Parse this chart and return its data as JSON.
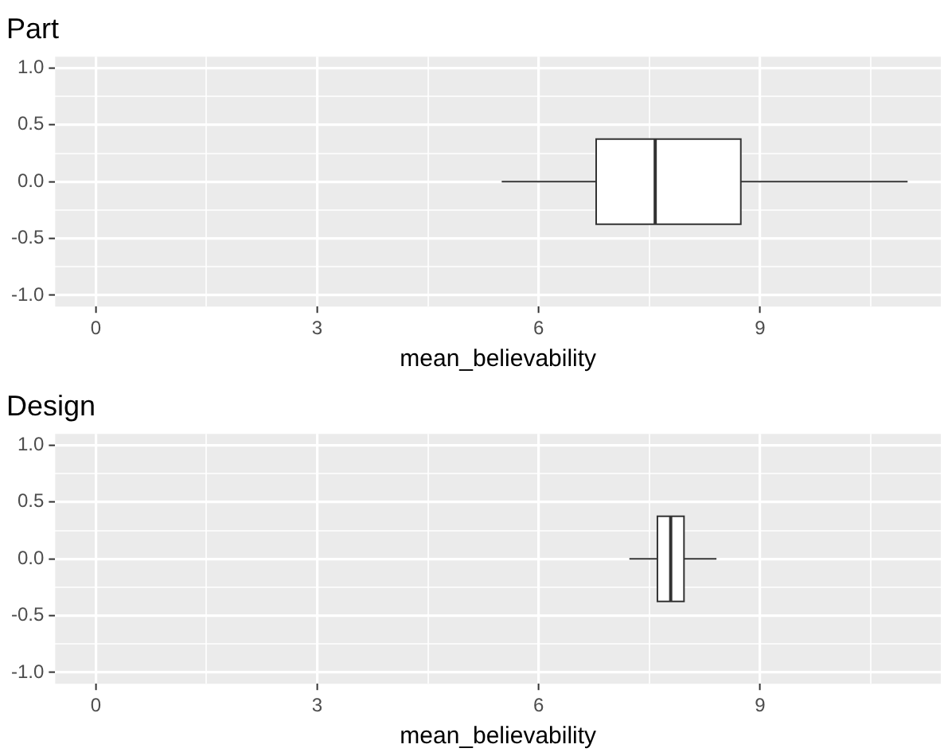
{
  "chart_data": [
    {
      "type": "box",
      "title": "Part",
      "xlabel": "mean_believability",
      "orientation": "horizontal",
      "x": [
        0
      ],
      "boxes": [
        {
          "low": 5.5,
          "q1": 6.78,
          "median": 7.58,
          "q3": 8.74,
          "high": 11.0
        }
      ],
      "xlim": [
        -0.55,
        11.45
      ],
      "xticks": [
        0,
        {
          "value": 1.5,
          "label": null
        },
        3,
        {
          "value": 4.5,
          "label": null
        },
        6,
        {
          "value": 7.5,
          "label": null
        },
        9,
        {
          "value": 10.5,
          "label": null
        }
      ],
      "ylim": [
        -1.1,
        1.1
      ],
      "yticks": [
        {
          "value": -1,
          "label": "-1.0"
        },
        {
          "value": -0.75,
          "label": null
        },
        {
          "value": -0.5,
          "label": "-0.5"
        },
        {
          "value": -0.25,
          "label": null
        },
        {
          "value": 0,
          "label": "0.0"
        },
        {
          "value": 0.25,
          "label": null
        },
        {
          "value": 0.5,
          "label": "0.5"
        },
        {
          "value": 0.75,
          "label": null
        },
        {
          "value": 1,
          "label": "1.0"
        }
      ],
      "grid": true,
      "legend": false
    },
    {
      "type": "box",
      "title": "Design",
      "xlabel": "mean_believability",
      "orientation": "horizontal",
      "x": [
        0
      ],
      "boxes": [
        {
          "low": 7.23,
          "q1": 7.61,
          "median": 7.79,
          "q3": 7.97,
          "high": 8.41
        }
      ],
      "xlim": [
        -0.55,
        11.45
      ],
      "xticks": [
        0,
        {
          "value": 1.5,
          "label": null
        },
        3,
        {
          "value": 4.5,
          "label": null
        },
        6,
        {
          "value": 7.5,
          "label": null
        },
        9,
        {
          "value": 10.5,
          "label": null
        }
      ],
      "ylim": [
        -1.1,
        1.1
      ],
      "yticks": [
        {
          "value": -1,
          "label": "-1.0"
        },
        {
          "value": -0.75,
          "label": null
        },
        {
          "value": -0.5,
          "label": "-0.5"
        },
        {
          "value": -0.25,
          "label": null
        },
        {
          "value": 0,
          "label": "0.0"
        },
        {
          "value": 0.25,
          "label": null
        },
        {
          "value": 0.5,
          "label": "0.5"
        },
        {
          "value": 0.75,
          "label": null
        },
        {
          "value": 1,
          "label": "1.0"
        }
      ],
      "grid": true,
      "legend": false
    }
  ]
}
